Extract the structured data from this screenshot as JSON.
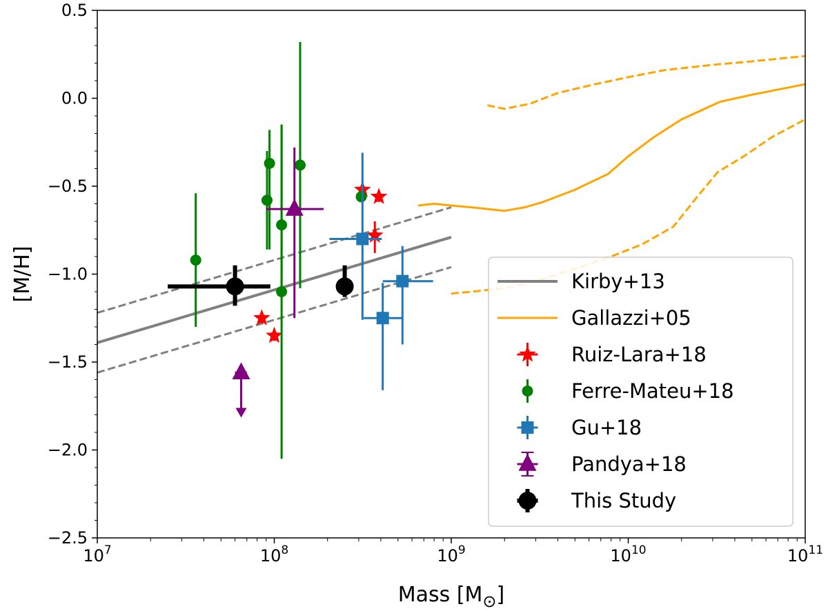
{
  "chart_data": {
    "type": "scatter",
    "xscale": "log",
    "xlim": [
      10000000,
      100000000000
    ],
    "ylim": [
      -2.5,
      0.5
    ],
    "xlabel": "Mass [M",
    "xlabel_symbol": "⊙",
    "xlabel_close": "]",
    "ylabel": "[M/H]",
    "x_ticks": [
      {
        "value": 10000000,
        "base": "10",
        "exp": "7"
      },
      {
        "value": 100000000,
        "base": "10",
        "exp": "8"
      },
      {
        "value": 1000000000,
        "base": "10",
        "exp": "9"
      },
      {
        "value": 10000000000,
        "base": "10",
        "exp": "10"
      },
      {
        "value": 100000000000,
        "base": "10",
        "exp": "11"
      }
    ],
    "y_ticks": [
      {
        "value": 0.5,
        "label": "0.5"
      },
      {
        "value": 0.0,
        "label": "0.0"
      },
      {
        "value": -0.5,
        "label": "−0.5"
      },
      {
        "value": -1.0,
        "label": "−1.0"
      },
      {
        "value": -1.5,
        "label": "−1.5"
      },
      {
        "value": -2.0,
        "label": "−2.0"
      },
      {
        "value": -2.5,
        "label": "−2.5"
      }
    ],
    "lines": [
      {
        "name": "Kirby+13",
        "color": "#808080",
        "style": "solid",
        "width": 4,
        "points": [
          [
            10000000,
            -1.39
          ],
          [
            1000000000,
            -0.79
          ]
        ]
      },
      {
        "name": "Kirby+13 upper",
        "color": "#808080",
        "style": "dashed",
        "width": 3,
        "points": [
          [
            10000000,
            -1.22
          ],
          [
            1000000000,
            -0.62
          ]
        ]
      },
      {
        "name": "Kirby+13 lower",
        "color": "#808080",
        "style": "dashed",
        "width": 3,
        "points": [
          [
            10000000,
            -1.56
          ],
          [
            1000000000,
            -0.96
          ]
        ]
      },
      {
        "name": "Gallazzi+05",
        "color": "#FFA500",
        "style": "solid",
        "width": 3,
        "points": [
          [
            650000000,
            -0.61
          ],
          [
            800000000,
            -0.6
          ],
          [
            1000000000,
            -0.61
          ],
          [
            1300000000,
            -0.62
          ],
          [
            2000000000,
            -0.64
          ],
          [
            2600000000,
            -0.62
          ],
          [
            3300000000,
            -0.59
          ],
          [
            5000000000,
            -0.52
          ],
          [
            7700000000,
            -0.43
          ],
          [
            10000000000,
            -0.33
          ],
          [
            14000000000,
            -0.22
          ],
          [
            20000000000,
            -0.12
          ],
          [
            33000000000,
            -0.02
          ],
          [
            50000000000,
            0.02
          ],
          [
            100000000000,
            0.08
          ]
        ]
      },
      {
        "name": "Gallazzi+05 upper",
        "color": "#FFA500",
        "style": "dashed",
        "width": 3,
        "points": [
          [
            1600000000,
            -0.04
          ],
          [
            2000000000,
            -0.06
          ],
          [
            2800000000,
            -0.03
          ],
          [
            4000000000,
            0.03
          ],
          [
            6500000000,
            0.08
          ],
          [
            10000000000,
            0.12
          ],
          [
            16000000000,
            0.16
          ],
          [
            30000000000,
            0.19
          ],
          [
            50000000000,
            0.21
          ],
          [
            100000000000,
            0.24
          ]
        ]
      },
      {
        "name": "Gallazzi+05 lower",
        "color": "#FFA500",
        "style": "dashed",
        "width": 3,
        "points": [
          [
            1000000000,
            -1.11
          ],
          [
            1300000000,
            -1.1
          ],
          [
            2000000000,
            -1.08
          ],
          [
            3000000000,
            -1.04
          ],
          [
            5000000000,
            -0.97
          ],
          [
            8000000000,
            -0.9
          ],
          [
            12000000000,
            -0.83
          ],
          [
            18000000000,
            -0.73
          ],
          [
            25000000000,
            -0.55
          ],
          [
            32000000000,
            -0.42
          ],
          [
            45000000000,
            -0.33
          ],
          [
            65000000000,
            -0.22
          ],
          [
            100000000000,
            -0.12
          ]
        ]
      }
    ],
    "series": [
      {
        "name": "Ruiz-Lara+18",
        "color": "#FF0000",
        "marker": "star",
        "size": 13,
        "points": [
          {
            "x": 85000000,
            "y": -1.25,
            "yerr": [
              0.03,
              0.03
            ]
          },
          {
            "x": 100000000,
            "y": -1.35,
            "yerr": [
              0.03,
              0.03
            ]
          },
          {
            "x": 315000000,
            "y": -0.52,
            "yerr": [
              0.03,
              0.03
            ]
          },
          {
            "x": 390000000,
            "y": -0.56,
            "yerr": [
              0.03,
              0.03
            ]
          },
          {
            "x": 370000000,
            "y": -0.78,
            "yerr": [
              0.1,
              0.08
            ]
          }
        ]
      },
      {
        "name": "Ferre-Mateu+18",
        "color": "#008000",
        "marker": "circle",
        "size": 8,
        "points": [
          {
            "x": 36000000,
            "y": -0.92,
            "yerr": [
              0.38,
              0.38
            ]
          },
          {
            "x": 91000000,
            "y": -0.58,
            "yerr": [
              0.28,
              0.28
            ]
          },
          {
            "x": 94000000,
            "y": -0.37,
            "yerr": [
              0.49,
              0.19
            ]
          },
          {
            "x": 110000000,
            "y": -0.72,
            "yerr": [
              0.36,
              0.57
            ]
          },
          {
            "x": 110000000,
            "y": -1.1,
            "yerr": [
              0.95,
              0.95
            ]
          },
          {
            "x": 140000000,
            "y": -0.38,
            "yerr": [
              0.7,
              0.7
            ]
          },
          {
            "x": 310000000,
            "y": -0.56,
            "yerr": [
              0.02,
              0.02
            ]
          }
        ]
      },
      {
        "name": "Gu+18",
        "color": "#1F77B4",
        "marker": "square",
        "size": 9,
        "points": [
          {
            "x": 315000000,
            "y": -0.8,
            "yerr": [
              0.46,
              0.49
            ],
            "xerr": [
              110000000,
              90000000
            ]
          },
          {
            "x": 410000000,
            "y": -1.25,
            "yerr": [
              0.41,
              0.2
            ],
            "xerr": [
              90000000,
              120000000
            ]
          },
          {
            "x": 530000000,
            "y": -1.04,
            "yerr": [
              0.36,
              0.2
            ],
            "xerr": [
              120000000,
              260000000
            ]
          }
        ]
      },
      {
        "name": "Pandya+18",
        "color": "#800080",
        "marker": "triangle",
        "size": 13,
        "points": [
          {
            "x": 130000000,
            "y": -0.63,
            "yerr": [
              0.62,
              0.35
            ],
            "xerr": [
              40000000,
              60000000
            ]
          },
          {
            "x": 65000000,
            "y": -1.56,
            "upper_limit": -1.8,
            "xerr": [
              5000000,
              5000000
            ]
          }
        ]
      },
      {
        "name": "This Study",
        "color": "#000000",
        "marker": "circle",
        "size": 13,
        "points": [
          {
            "x": 60000000,
            "y": -1.07,
            "yerr": [
              0.11,
              0.12
            ],
            "xerr": [
              35000000,
              35000000
            ]
          },
          {
            "x": 250000000,
            "y": -1.07,
            "yerr": [
              0.06,
              0.12
            ],
            "xerr": [
              0,
              0
            ]
          }
        ]
      }
    ],
    "legend": {
      "position": "lower-right",
      "entries": [
        {
          "label": "Kirby+13",
          "type": "line",
          "color": "#808080",
          "width": 4
        },
        {
          "label": "Gallazzi+05",
          "type": "line",
          "color": "#FFA500",
          "width": 3
        },
        {
          "label": "Ruiz-Lara+18",
          "type": "marker",
          "marker": "star",
          "color": "#FF0000"
        },
        {
          "label": "Ferre-Mateu+18",
          "type": "marker",
          "marker": "circle-small",
          "color": "#008000"
        },
        {
          "label": "Gu+18",
          "type": "marker",
          "marker": "square",
          "color": "#1F77B4"
        },
        {
          "label": "Pandya+18",
          "type": "marker",
          "marker": "triangle",
          "color": "#800080"
        },
        {
          "label": "This Study",
          "type": "marker",
          "marker": "circle",
          "color": "#000000"
        }
      ]
    }
  }
}
